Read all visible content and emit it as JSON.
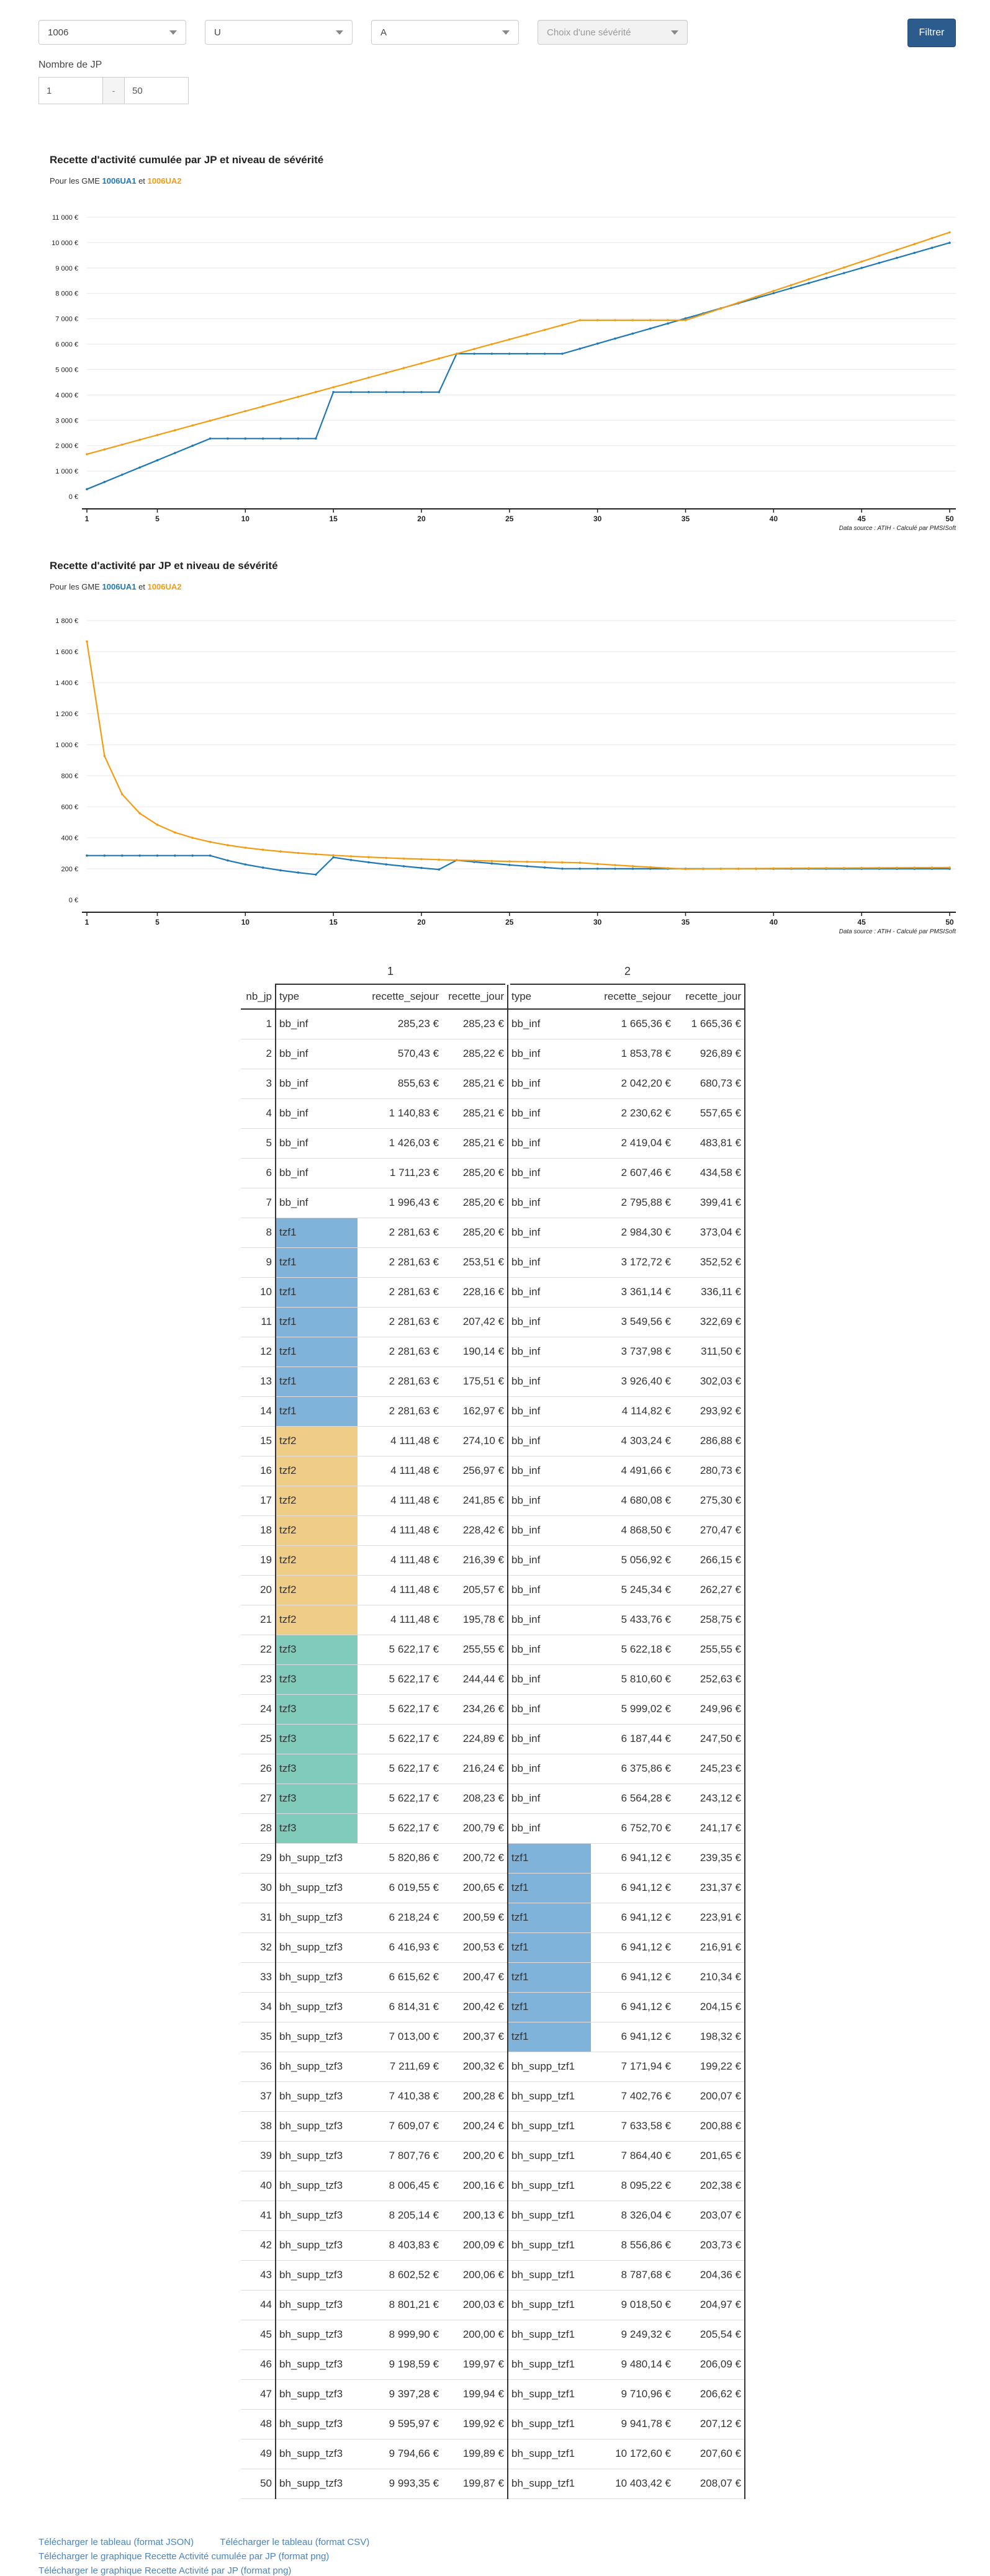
{
  "filters": {
    "ghm_value": "1006",
    "type_value": "U",
    "complexity_value": "A",
    "severity_placeholder": "Choix d'une sévérité",
    "filter_button": "Filtrer",
    "jp_label": "Nombre de JP",
    "jp_min": "1",
    "jp_sep": "-",
    "jp_max": "50"
  },
  "charts": [
    {
      "title": "Recette d'activité cumulée par JP et niveau de sévérité",
      "subtitle_prefix": "Pour les GME ",
      "series1_name": "1006UA1",
      "subtitle_mid": " et ",
      "series2_name": "1006UA2",
      "source": "Data source : ATIH - Calculé par PMSISoft"
    },
    {
      "title": "Recette d'activité par JP et niveau de sévérité",
      "subtitle_prefix": "Pour les GME ",
      "series1_name": "1006UA1",
      "subtitle_mid": " et ",
      "series2_name": "1006UA2",
      "source": "Data source : ATIH - Calculé par PMSISoft"
    }
  ],
  "chart_data": [
    {
      "type": "line",
      "x": [
        1,
        2,
        3,
        4,
        5,
        6,
        7,
        8,
        9,
        10,
        11,
        12,
        13,
        14,
        15,
        16,
        17,
        18,
        19,
        20,
        21,
        22,
        23,
        24,
        25,
        26,
        27,
        28,
        29,
        30,
        31,
        32,
        33,
        34,
        35,
        36,
        37,
        38,
        39,
        40,
        41,
        42,
        43,
        44,
        45,
        46,
        47,
        48,
        49,
        50
      ],
      "series": [
        {
          "name": "1006UA1",
          "color": "#1f78b4",
          "values": [
            285.23,
            570.43,
            855.63,
            1140.83,
            1426.03,
            1711.23,
            1996.43,
            2281.63,
            2281.63,
            2281.63,
            2281.63,
            2281.63,
            2281.63,
            2281.63,
            4111.48,
            4111.48,
            4111.48,
            4111.48,
            4111.48,
            4111.48,
            4111.48,
            5622.17,
            5622.17,
            5622.17,
            5622.17,
            5622.17,
            5622.17,
            5622.17,
            5820.86,
            6019.55,
            6218.24,
            6416.93,
            6615.62,
            6814.31,
            7013.0,
            7211.69,
            7410.38,
            7609.07,
            7807.76,
            8006.45,
            8205.14,
            8403.83,
            8602.52,
            8801.21,
            8999.9,
            9198.59,
            9397.28,
            9595.97,
            9794.66,
            9993.35
          ]
        },
        {
          "name": "1006UA2",
          "color": "#f39c12",
          "values": [
            1665.36,
            1853.78,
            2042.2,
            2230.62,
            2419.04,
            2607.46,
            2795.88,
            2984.3,
            3172.72,
            3361.14,
            3549.56,
            3737.98,
            3926.4,
            4114.82,
            4303.24,
            4491.66,
            4680.08,
            4868.5,
            5056.92,
            5245.34,
            5433.76,
            5622.18,
            5810.6,
            5999.02,
            6187.44,
            6375.86,
            6564.28,
            6752.7,
            6941.12,
            6941.12,
            6941.12,
            6941.12,
            6941.12,
            6941.12,
            6941.12,
            7171.94,
            7402.76,
            7633.58,
            7864.4,
            8095.22,
            8326.04,
            8556.86,
            8787.68,
            9018.5,
            9249.32,
            9480.14,
            9710.96,
            9941.78,
            10172.6,
            10403.42
          ]
        }
      ],
      "y_ticks": [
        "0 €",
        "1 000 €",
        "2 000 €",
        "3 000 €",
        "4 000 €",
        "5 000 €",
        "6 000 €",
        "7 000 €",
        "8 000 €",
        "9 000 €",
        "10 000 €",
        "11 000 €"
      ],
      "x_ticks": [
        "1",
        "5",
        "10",
        "15",
        "20",
        "25",
        "30",
        "35",
        "40",
        "45",
        "50"
      ],
      "ylim": [
        0,
        11000
      ]
    },
    {
      "type": "line",
      "x": [
        1,
        2,
        3,
        4,
        5,
        6,
        7,
        8,
        9,
        10,
        11,
        12,
        13,
        14,
        15,
        16,
        17,
        18,
        19,
        20,
        21,
        22,
        23,
        24,
        25,
        26,
        27,
        28,
        29,
        30,
        31,
        32,
        33,
        34,
        35,
        36,
        37,
        38,
        39,
        40,
        41,
        42,
        43,
        44,
        45,
        46,
        47,
        48,
        49,
        50
      ],
      "series": [
        {
          "name": "1006UA1",
          "color": "#1f78b4",
          "values": [
            285.23,
            285.22,
            285.21,
            285.21,
            285.21,
            285.2,
            285.2,
            285.2,
            253.51,
            228.16,
            207.42,
            190.14,
            175.51,
            162.97,
            274.1,
            256.97,
            241.85,
            228.42,
            216.39,
            205.57,
            195.78,
            255.55,
            244.44,
            234.26,
            224.89,
            216.24,
            208.23,
            200.79,
            200.72,
            200.65,
            200.59,
            200.53,
            200.47,
            200.42,
            200.37,
            200.32,
            200.28,
            200.24,
            200.2,
            200.16,
            200.13,
            200.09,
            200.06,
            200.03,
            200.0,
            199.97,
            199.94,
            199.92,
            199.89,
            199.87
          ]
        },
        {
          "name": "1006UA2",
          "color": "#f39c12",
          "values": [
            1665.36,
            926.89,
            680.73,
            557.65,
            483.81,
            434.58,
            399.41,
            373.04,
            352.52,
            336.11,
            322.69,
            311.5,
            302.03,
            293.92,
            286.88,
            280.73,
            275.3,
            270.47,
            266.15,
            262.27,
            258.75,
            255.55,
            252.63,
            249.96,
            247.5,
            245.23,
            243.12,
            241.17,
            239.35,
            231.37,
            223.91,
            216.91,
            210.34,
            204.15,
            198.32,
            199.22,
            200.07,
            200.88,
            201.65,
            202.38,
            203.07,
            203.73,
            204.36,
            204.97,
            205.54,
            206.09,
            206.62,
            207.12,
            207.6,
            208.07
          ]
        }
      ],
      "y_ticks": [
        "0 €",
        "200 €",
        "400 €",
        "600 €",
        "800 €",
        "1 000 €",
        "1 200 €",
        "1 400 €",
        "1 600 €",
        "1 800 €"
      ],
      "x_ticks": [
        "1",
        "5",
        "10",
        "15",
        "20",
        "25",
        "30",
        "35",
        "40",
        "45",
        "50"
      ],
      "ylim": [
        0,
        1800
      ]
    }
  ],
  "table": {
    "group_headers": [
      "1",
      "2"
    ],
    "columns": [
      "nb_jp",
      "type",
      "recette_sejour",
      "recette_jour",
      "type",
      "recette_sejour",
      "recette_jour"
    ],
    "colors": {
      "tzf1": "#7fb3d9",
      "tzf2": "#f0cd86",
      "tzf3": "#80cbb9"
    },
    "rows": [
      [
        "1",
        "bb_inf",
        "285,23 €",
        "285,23 €",
        "bb_inf",
        "1 665,36 €",
        "1 665,36 €"
      ],
      [
        "2",
        "bb_inf",
        "570,43 €",
        "285,22 €",
        "bb_inf",
        "1 853,78 €",
        "926,89 €"
      ],
      [
        "3",
        "bb_inf",
        "855,63 €",
        "285,21 €",
        "bb_inf",
        "2 042,20 €",
        "680,73 €"
      ],
      [
        "4",
        "bb_inf",
        "1 140,83 €",
        "285,21 €",
        "bb_inf",
        "2 230,62 €",
        "557,65 €"
      ],
      [
        "5",
        "bb_inf",
        "1 426,03 €",
        "285,21 €",
        "bb_inf",
        "2 419,04 €",
        "483,81 €"
      ],
      [
        "6",
        "bb_inf",
        "1 711,23 €",
        "285,20 €",
        "bb_inf",
        "2 607,46 €",
        "434,58 €"
      ],
      [
        "7",
        "bb_inf",
        "1 996,43 €",
        "285,20 €",
        "bb_inf",
        "2 795,88 €",
        "399,41 €"
      ],
      [
        "8",
        "tzf1",
        "2 281,63 €",
        "285,20 €",
        "bb_inf",
        "2 984,30 €",
        "373,04 €"
      ],
      [
        "9",
        "tzf1",
        "2 281,63 €",
        "253,51 €",
        "bb_inf",
        "3 172,72 €",
        "352,52 €"
      ],
      [
        "10",
        "tzf1",
        "2 281,63 €",
        "228,16 €",
        "bb_inf",
        "3 361,14 €",
        "336,11 €"
      ],
      [
        "11",
        "tzf1",
        "2 281,63 €",
        "207,42 €",
        "bb_inf",
        "3 549,56 €",
        "322,69 €"
      ],
      [
        "12",
        "tzf1",
        "2 281,63 €",
        "190,14 €",
        "bb_inf",
        "3 737,98 €",
        "311,50 €"
      ],
      [
        "13",
        "tzf1",
        "2 281,63 €",
        "175,51 €",
        "bb_inf",
        "3 926,40 €",
        "302,03 €"
      ],
      [
        "14",
        "tzf1",
        "2 281,63 €",
        "162,97 €",
        "bb_inf",
        "4 114,82 €",
        "293,92 €"
      ],
      [
        "15",
        "tzf2",
        "4 111,48 €",
        "274,10 €",
        "bb_inf",
        "4 303,24 €",
        "286,88 €"
      ],
      [
        "16",
        "tzf2",
        "4 111,48 €",
        "256,97 €",
        "bb_inf",
        "4 491,66 €",
        "280,73 €"
      ],
      [
        "17",
        "tzf2",
        "4 111,48 €",
        "241,85 €",
        "bb_inf",
        "4 680,08 €",
        "275,30 €"
      ],
      [
        "18",
        "tzf2",
        "4 111,48 €",
        "228,42 €",
        "bb_inf",
        "4 868,50 €",
        "270,47 €"
      ],
      [
        "19",
        "tzf2",
        "4 111,48 €",
        "216,39 €",
        "bb_inf",
        "5 056,92 €",
        "266,15 €"
      ],
      [
        "20",
        "tzf2",
        "4 111,48 €",
        "205,57 €",
        "bb_inf",
        "5 245,34 €",
        "262,27 €"
      ],
      [
        "21",
        "tzf2",
        "4 111,48 €",
        "195,78 €",
        "bb_inf",
        "5 433,76 €",
        "258,75 €"
      ],
      [
        "22",
        "tzf3",
        "5 622,17 €",
        "255,55 €",
        "bb_inf",
        "5 622,18 €",
        "255,55 €"
      ],
      [
        "23",
        "tzf3",
        "5 622,17 €",
        "244,44 €",
        "bb_inf",
        "5 810,60 €",
        "252,63 €"
      ],
      [
        "24",
        "tzf3",
        "5 622,17 €",
        "234,26 €",
        "bb_inf",
        "5 999,02 €",
        "249,96 €"
      ],
      [
        "25",
        "tzf3",
        "5 622,17 €",
        "224,89 €",
        "bb_inf",
        "6 187,44 €",
        "247,50 €"
      ],
      [
        "26",
        "tzf3",
        "5 622,17 €",
        "216,24 €",
        "bb_inf",
        "6 375,86 €",
        "245,23 €"
      ],
      [
        "27",
        "tzf3",
        "5 622,17 €",
        "208,23 €",
        "bb_inf",
        "6 564,28 €",
        "243,12 €"
      ],
      [
        "28",
        "tzf3",
        "5 622,17 €",
        "200,79 €",
        "bb_inf",
        "6 752,70 €",
        "241,17 €"
      ],
      [
        "29",
        "bh_supp_tzf3",
        "5 820,86 €",
        "200,72 €",
        "tzf1",
        "6 941,12 €",
        "239,35 €"
      ],
      [
        "30",
        "bh_supp_tzf3",
        "6 019,55 €",
        "200,65 €",
        "tzf1",
        "6 941,12 €",
        "231,37 €"
      ],
      [
        "31",
        "bh_supp_tzf3",
        "6 218,24 €",
        "200,59 €",
        "tzf1",
        "6 941,12 €",
        "223,91 €"
      ],
      [
        "32",
        "bh_supp_tzf3",
        "6 416,93 €",
        "200,53 €",
        "tzf1",
        "6 941,12 €",
        "216,91 €"
      ],
      [
        "33",
        "bh_supp_tzf3",
        "6 615,62 €",
        "200,47 €",
        "tzf1",
        "6 941,12 €",
        "210,34 €"
      ],
      [
        "34",
        "bh_supp_tzf3",
        "6 814,31 €",
        "200,42 €",
        "tzf1",
        "6 941,12 €",
        "204,15 €"
      ],
      [
        "35",
        "bh_supp_tzf3",
        "7 013,00 €",
        "200,37 €",
        "tzf1",
        "6 941,12 €",
        "198,32 €"
      ],
      [
        "36",
        "bh_supp_tzf3",
        "7 211,69 €",
        "200,32 €",
        "bh_supp_tzf1",
        "7 171,94 €",
        "199,22 €"
      ],
      [
        "37",
        "bh_supp_tzf3",
        "7 410,38 €",
        "200,28 €",
        "bh_supp_tzf1",
        "7 402,76 €",
        "200,07 €"
      ],
      [
        "38",
        "bh_supp_tzf3",
        "7 609,07 €",
        "200,24 €",
        "bh_supp_tzf1",
        "7 633,58 €",
        "200,88 €"
      ],
      [
        "39",
        "bh_supp_tzf3",
        "7 807,76 €",
        "200,20 €",
        "bh_supp_tzf1",
        "7 864,40 €",
        "201,65 €"
      ],
      [
        "40",
        "bh_supp_tzf3",
        "8 006,45 €",
        "200,16 €",
        "bh_supp_tzf1",
        "8 095,22 €",
        "202,38 €"
      ],
      [
        "41",
        "bh_supp_tzf3",
        "8 205,14 €",
        "200,13 €",
        "bh_supp_tzf1",
        "8 326,04 €",
        "203,07 €"
      ],
      [
        "42",
        "bh_supp_tzf3",
        "8 403,83 €",
        "200,09 €",
        "bh_supp_tzf1",
        "8 556,86 €",
        "203,73 €"
      ],
      [
        "43",
        "bh_supp_tzf3",
        "8 602,52 €",
        "200,06 €",
        "bh_supp_tzf1",
        "8 787,68 €",
        "204,36 €"
      ],
      [
        "44",
        "bh_supp_tzf3",
        "8 801,21 €",
        "200,03 €",
        "bh_supp_tzf1",
        "9 018,50 €",
        "204,97 €"
      ],
      [
        "45",
        "bh_supp_tzf3",
        "8 999,90 €",
        "200,00 €",
        "bh_supp_tzf1",
        "9 249,32 €",
        "205,54 €"
      ],
      [
        "46",
        "bh_supp_tzf3",
        "9 198,59 €",
        "199,97 €",
        "bh_supp_tzf1",
        "9 480,14 €",
        "206,09 €"
      ],
      [
        "47",
        "bh_supp_tzf3",
        "9 397,28 €",
        "199,94 €",
        "bh_supp_tzf1",
        "9 710,96 €",
        "206,62 €"
      ],
      [
        "48",
        "bh_supp_tzf3",
        "9 595,97 €",
        "199,92 €",
        "bh_supp_tzf1",
        "9 941,78 €",
        "207,12 €"
      ],
      [
        "49",
        "bh_supp_tzf3",
        "9 794,66 €",
        "199,89 €",
        "bh_supp_tzf1",
        "10 172,60 €",
        "207,60 €"
      ],
      [
        "50",
        "bh_supp_tzf3",
        "9 993,35 €",
        "199,87 €",
        "bh_supp_tzf1",
        "10 403,42 €",
        "208,07 €"
      ]
    ]
  },
  "links": {
    "json": "Télécharger le tableau (format JSON)",
    "csv": "Télécharger le tableau (format CSV)",
    "png_cumul": "Télécharger le graphique Recette Activité cumulée par JP (format png)",
    "png_jp": "Télécharger le graphique Recette Activité par JP (format png)"
  }
}
